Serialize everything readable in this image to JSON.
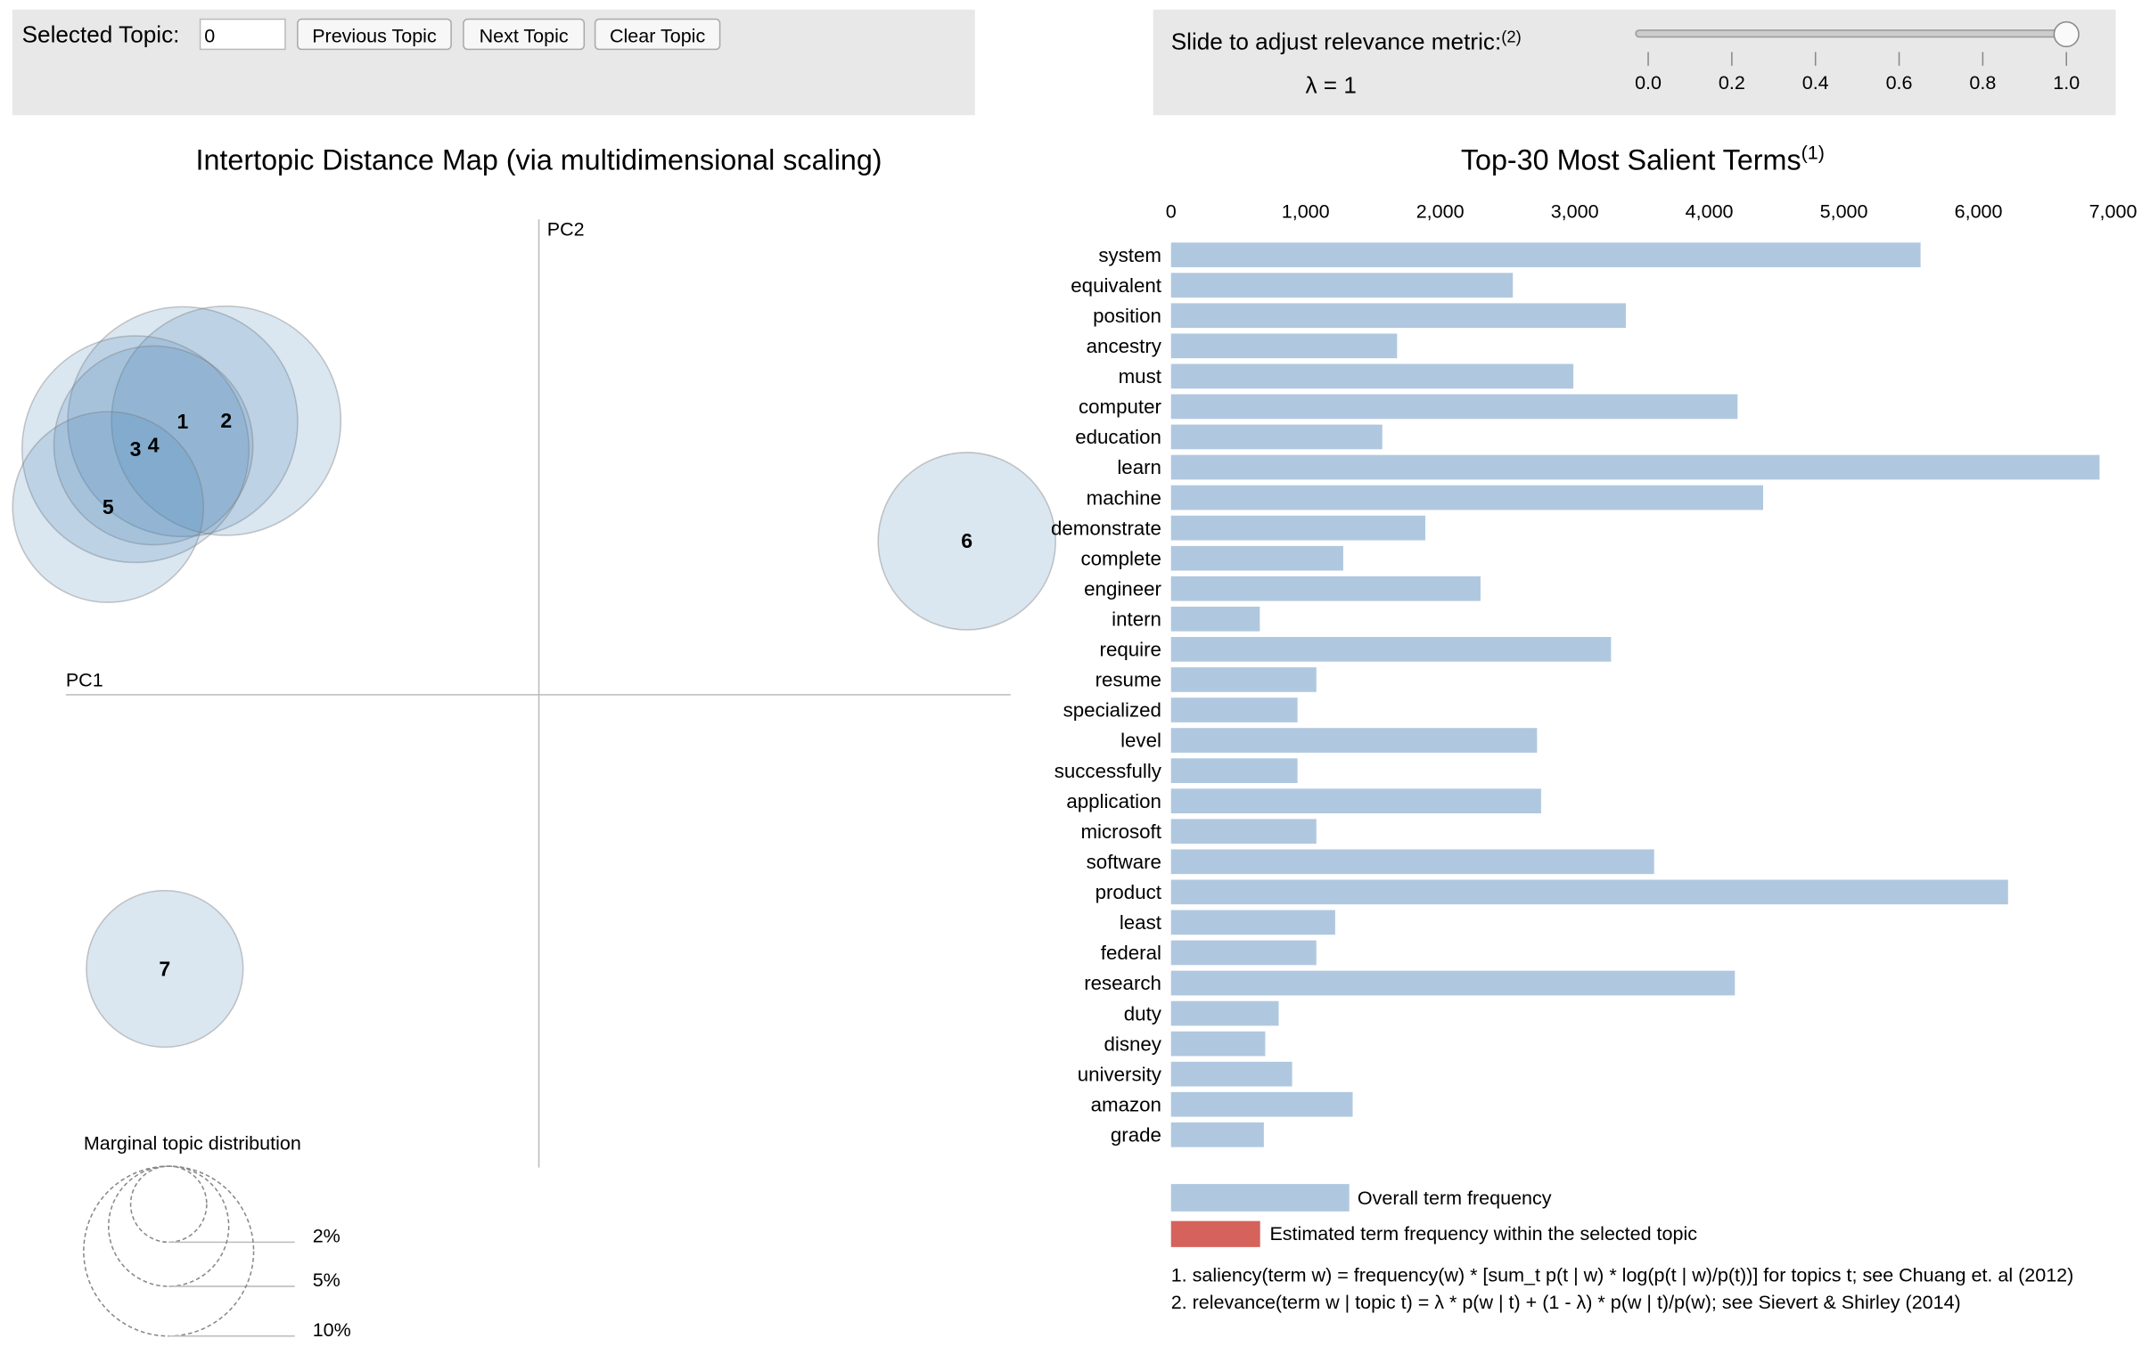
{
  "controls": {
    "topic_label": "Selected Topic:",
    "topic_value": "0",
    "buttons": [
      "Previous Topic",
      "Next Topic",
      "Clear Topic"
    ],
    "slider_label": "Slide to adjust relevance metric:",
    "slider_note": "(2)",
    "lambda_label": "λ = 1",
    "slider_value": 1,
    "slider_lim": [
      0,
      1
    ],
    "slider_ticks": [
      {
        "value": 0,
        "label": "0.0"
      },
      {
        "value": 0.2,
        "label": "0.2"
      },
      {
        "value": 0.4,
        "label": "0.4"
      },
      {
        "value": 0.6,
        "label": "0.6"
      },
      {
        "value": 0.8,
        "label": "0.8"
      },
      {
        "value": 1,
        "label": "1.0"
      }
    ]
  },
  "chart_data": [
    {
      "type": "scatter",
      "title": "Intertopic Distance Map (via multidimensional scaling)",
      "x_label": "PC1",
      "y_label": "PC2",
      "labels": [
        "1",
        "2",
        "3",
        "4",
        "5",
        "6",
        "7"
      ],
      "x": [
        -0.377,
        -0.331,
        -0.427,
        -0.408,
        -0.456,
        0.453,
        -0.396
      ],
      "y": [
        0.288,
        0.289,
        0.259,
        0.263,
        0.198,
        0.162,
        -0.289
      ],
      "sizes": [
        18.3,
        18.2,
        17.8,
        13.7,
        12.6,
        10.9,
        8.5
      ],
      "xlim": [
        -0.5,
        0.5
      ],
      "ylim": [
        -0.5,
        0.5
      ],
      "color": "#4682b4",
      "size_legend_title": "Marginal topic distribution",
      "size_legend": [
        {
          "value": 2,
          "label": "2%"
        },
        {
          "value": 5,
          "label": "5%"
        },
        {
          "value": 10,
          "label": "10%"
        }
      ]
    },
    {
      "type": "bar",
      "orientation": "horizontal",
      "title": "Top-30 Most Salient Terms",
      "title_note": "(1)",
      "categories": [
        "system",
        "equivalent",
        "position",
        "ancestry",
        "must",
        "computer",
        "education",
        "learn",
        "machine",
        "demonstrate",
        "complete",
        "engineer",
        "intern",
        "require",
        "resume",
        "specialized",
        "level",
        "successfully",
        "application",
        "microsoft",
        "software",
        "product",
        "least",
        "federal",
        "research",
        "duty",
        "disney",
        "university",
        "amazon",
        "grade"
      ],
      "series": [
        {
          "name": "Overall term frequency",
          "color": "#b0c8df",
          "values": [
            5570,
            2540,
            3380,
            1680,
            2990,
            4210,
            1570,
            6900,
            4400,
            1890,
            1280,
            2300,
            660,
            3270,
            1080,
            940,
            2720,
            940,
            2750,
            1080,
            3590,
            6220,
            1220,
            1080,
            4190,
            800,
            700,
            900,
            1350,
            690
          ]
        }
      ],
      "topic_series": {
        "name": "Estimated term frequency within the selected topic",
        "color": "#d6625c"
      },
      "xlim": [
        0,
        7000
      ],
      "xticks": [
        0,
        {
          "value": 1000,
          "label": "1,000"
        },
        {
          "value": 2000,
          "label": "2,000"
        },
        {
          "value": 3000,
          "label": "3,000"
        },
        {
          "value": 4000,
          "label": "4,000"
        },
        {
          "value": 5000,
          "label": "5,000"
        },
        {
          "value": 6000,
          "label": "6,000"
        },
        {
          "value": 7000,
          "label": "7,000"
        }
      ]
    }
  ],
  "footnotes": [
    "1. saliency(term w) = frequency(w) * [sum_t p(t | w) * log(p(t | w)/p(t))] for topics t; see Chuang et. al (2012)",
    "2. relevance(term w | topic t) = λ * p(w | t) + (1 - λ) * p(w | t)/p(w); see Sievert & Shirley (2014)"
  ]
}
